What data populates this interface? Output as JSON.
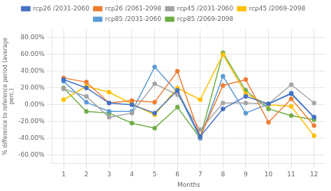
{
  "chart_data": {
    "type": "line",
    "xlabel": "Months",
    "ylabel": "% difference to reference period (average\nperc.)",
    "x": [
      1,
      2,
      3,
      4,
      5,
      6,
      7,
      8,
      9,
      10,
      11,
      12
    ],
    "xlim": [
      0.5,
      12.5
    ],
    "xticks": [
      1,
      2,
      3,
      4,
      5,
      6,
      7,
      8,
      9,
      10,
      11,
      12
    ],
    "ylim": [
      -0.7,
      0.9
    ],
    "yticks": [
      {
        "value": -0.6,
        "label": "-60.00%"
      },
      {
        "value": -0.4,
        "label": "-40.00%"
      },
      {
        "value": -0.2,
        "label": "-20.00%"
      },
      {
        "value": 0.0,
        "label": "0.00%"
      },
      {
        "value": 0.2,
        "label": "20.00%"
      },
      {
        "value": 0.4,
        "label": "40.00%"
      },
      {
        "value": 0.6,
        "label": "60.00%"
      },
      {
        "value": 0.8,
        "label": "80.00%"
      }
    ],
    "grid": true,
    "legend": "top",
    "marker": "circle",
    "series": [
      {
        "name": "rcp26 /2031-2060",
        "color": "#4472C4",
        "values": [
          0.3,
          0.2,
          0.02,
          0.0,
          -0.1,
          0.17,
          -0.38,
          -0.05,
          0.1,
          0.01,
          0.13,
          -0.15
        ]
      },
      {
        "name": "rcp26 /2061-2098",
        "color": "#ED7D31",
        "values": [
          0.32,
          0.27,
          0.02,
          0.05,
          0.03,
          0.4,
          -0.38,
          0.23,
          0.3,
          -0.21,
          0.07,
          -0.25
        ]
      },
      {
        "name": "rcp45 /2031-2060",
        "color": "#A5A5A5",
        "values": [
          0.19,
          0.1,
          -0.15,
          -0.1,
          0.25,
          0.12,
          -0.3,
          0.02,
          0.02,
          0.01,
          0.24,
          0.02
        ]
      },
      {
        "name": "rcp45 /2069-2098",
        "color": "#FFC000",
        "values": [
          0.06,
          0.22,
          0.15,
          0.01,
          -0.12,
          0.2,
          0.06,
          0.6,
          0.13,
          0.0,
          -0.02,
          -0.37
        ]
      },
      {
        "name": "rcp85 /2031-2060",
        "color": "#5B9BD5",
        "values": [
          0.28,
          0.03,
          -0.08,
          -0.08,
          0.45,
          0.15,
          -0.4,
          0.34,
          -0.1,
          0.01,
          0.14,
          -0.15
        ]
      },
      {
        "name": "rcp85 /2069-2098",
        "color": "#70AD47",
        "values": [
          0.2,
          -0.08,
          -0.1,
          -0.22,
          -0.28,
          -0.03,
          -0.4,
          0.62,
          0.17,
          -0.05,
          -0.13,
          -0.18
        ]
      }
    ]
  }
}
